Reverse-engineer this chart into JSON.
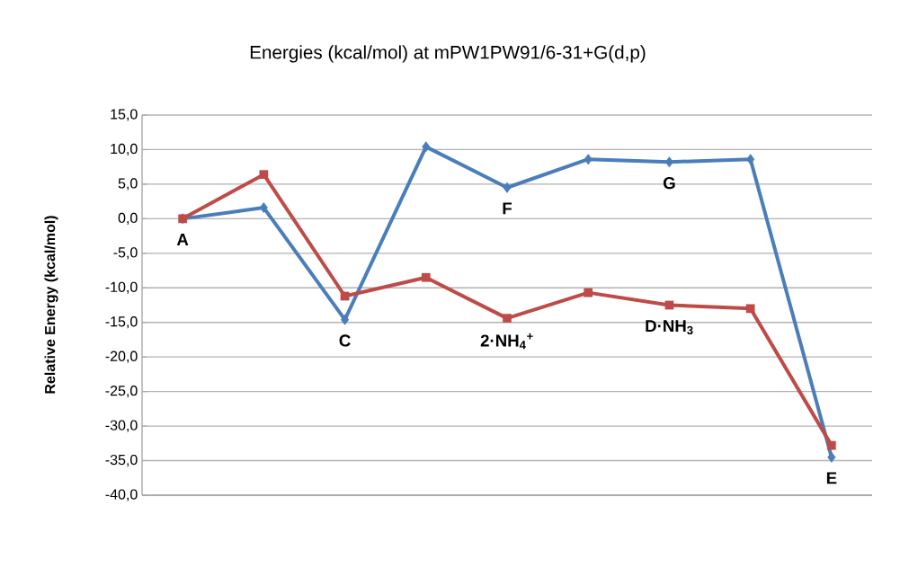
{
  "chart_data": {
    "type": "line",
    "title": "Energies (kcal/mol) at mPW1PW91/6-31+G(d,p)",
    "ylabel": "Relative Energy (kcal/mol)",
    "categories": [
      null,
      null,
      null,
      null,
      null,
      null,
      null,
      null,
      null
    ],
    "ylim": [
      -40,
      15
    ],
    "yticks": [
      {
        "value": -40,
        "label": "-40,0"
      },
      {
        "value": -35,
        "label": "-35,0"
      },
      {
        "value": -30,
        "label": "-30,0"
      },
      {
        "value": -25,
        "label": "-25,0"
      },
      {
        "value": -20,
        "label": "-20,0"
      },
      {
        "value": -15,
        "label": "-15,0"
      },
      {
        "value": -10,
        "label": "-10,0"
      },
      {
        "value": -5,
        "label": "-5,0"
      },
      {
        "value": 0,
        "label": "0,0"
      },
      {
        "value": 5,
        "label": "5,0"
      },
      {
        "value": 10,
        "label": "10,0"
      },
      {
        "value": 15,
        "label": "15,0"
      }
    ],
    "grid": "y",
    "legend": false,
    "line_style": "solid",
    "series": [
      {
        "color": "#4a7ebb",
        "marker": "diamond",
        "values": [
          0,
          1.6,
          -14.6,
          10.4,
          4.5,
          8.6,
          8.2,
          8.6,
          -34.5
        ]
      },
      {
        "color": "#be4b48",
        "marker": "square",
        "values": [
          0,
          6.4,
          -11.2,
          -8.5,
          -14.4,
          -10.7,
          -12.5,
          -13.0,
          -32.8
        ]
      }
    ],
    "annotations": [
      "A",
      "C",
      "F",
      "G",
      "**2**·NH$_{4}$$^{+}$",
      "**D**·NH$_{3}$",
      "E"
    ]
  }
}
